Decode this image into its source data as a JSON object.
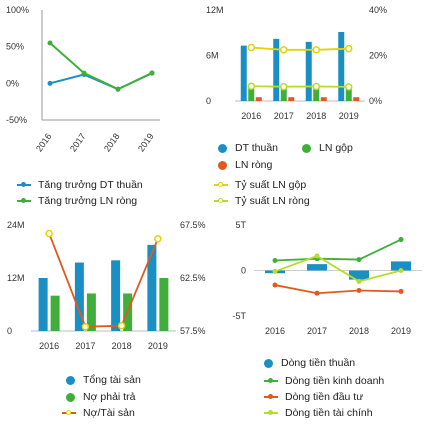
{
  "colors": {
    "blue": "#1a8fc4",
    "green": "#3fae3a",
    "red": "#e05a1e",
    "yellow": "#e2d400",
    "lightgreen": "#b6dd2c"
  },
  "chart_data": [
    {
      "type": "line",
      "x": [
        "2016",
        "2017",
        "2018",
        "2019"
      ],
      "yticks": [
        "100%",
        "50%",
        "0%",
        "-50%"
      ],
      "ylim": [
        -50,
        100
      ],
      "series": [
        {
          "name": "Tăng trưởng DT thuần",
          "color": "#1a8fc4",
          "values": [
            0,
            12,
            -8,
            14
          ]
        },
        {
          "name": "Tăng trưởng LN ròng",
          "color": "#3fae3a",
          "values": [
            55,
            14,
            -8,
            14
          ]
        }
      ],
      "legend": "bottom"
    },
    {
      "type": "bar",
      "x": [
        "2016",
        "2017",
        "2018",
        "2019"
      ],
      "yticks_left": [
        "12M",
        "6M",
        "0"
      ],
      "yticks_right": [
        "40%",
        "20%",
        "0%"
      ],
      "ylim_left": [
        0,
        12
      ],
      "ylim_right": [
        0,
        40
      ],
      "series": [
        {
          "name": "DT thuần",
          "color": "#1a8fc4",
          "kind": "bar",
          "values": [
            7.3,
            8.2,
            7.8,
            9.1
          ]
        },
        {
          "name": "LN gộp",
          "color": "#3fae3a",
          "kind": "bar",
          "values": [
            1.7,
            1.8,
            1.8,
            2.1
          ]
        },
        {
          "name": "LN ròng",
          "color": "#e05a1e",
          "kind": "bar",
          "values": [
            0.5,
            0.5,
            0.5,
            0.5
          ]
        },
        {
          "name": "Tỷ suất LN gộp",
          "color": "#e2d400",
          "kind": "line",
          "values": [
            23.5,
            22.5,
            22.5,
            23
          ]
        },
        {
          "name": "Tỷ suất LN ròng",
          "color": "#b6dd2c",
          "kind": "line",
          "values": [
            6.5,
            6.3,
            6.4,
            6.2
          ]
        }
      ],
      "legend": "bottom"
    },
    {
      "type": "bar",
      "x": [
        "2016",
        "2017",
        "2018",
        "2019"
      ],
      "yticks_left": [
        "24M",
        "12M",
        "0"
      ],
      "yticks_right": [
        "67.5%",
        "62.5%",
        "57.5%"
      ],
      "ylim_left": [
        0,
        24
      ],
      "ylim_right": [
        57.5,
        67.5
      ],
      "series": [
        {
          "name": "Tổng tài sản",
          "color": "#1a8fc4",
          "kind": "bar",
          "values": [
            12,
            15.5,
            16,
            19.5
          ]
        },
        {
          "name": "Nợ phải trả",
          "color": "#3fae3a",
          "kind": "bar",
          "values": [
            8,
            8.5,
            8.5,
            12
          ]
        },
        {
          "name": "Nợ/Tài sản",
          "color": "#e05a1e",
          "marker": "#e2d400",
          "kind": "line",
          "values": [
            66.7,
            57.9,
            58.0,
            66.2
          ]
        }
      ],
      "legend": "bottom"
    },
    {
      "type": "bar",
      "x": [
        "2016",
        "2017",
        "2018",
        "2019"
      ],
      "yticks": [
        "5T",
        "0",
        "-5T"
      ],
      "ylim": [
        -5,
        5
      ],
      "series": [
        {
          "name": "Dòng tiền thuần",
          "color": "#1a8fc4",
          "kind": "bar",
          "values": [
            -0.3,
            0.7,
            -1.0,
            1.0
          ]
        },
        {
          "name": "Dòng tiền kinh doanh",
          "color": "#3fae3a",
          "kind": "line",
          "values": [
            1.1,
            1.3,
            1.2,
            3.4
          ]
        },
        {
          "name": "Dòng tiền đầu tư",
          "color": "#e05a1e",
          "kind": "line",
          "values": [
            -1.6,
            -2.5,
            -2.2,
            -2.3
          ]
        },
        {
          "name": "Dòng tiền tài chính",
          "color": "#b6dd2c",
          "kind": "line",
          "values": [
            -0.1,
            1.6,
            -1.2,
            0.0
          ]
        }
      ],
      "legend": "bottom"
    }
  ]
}
